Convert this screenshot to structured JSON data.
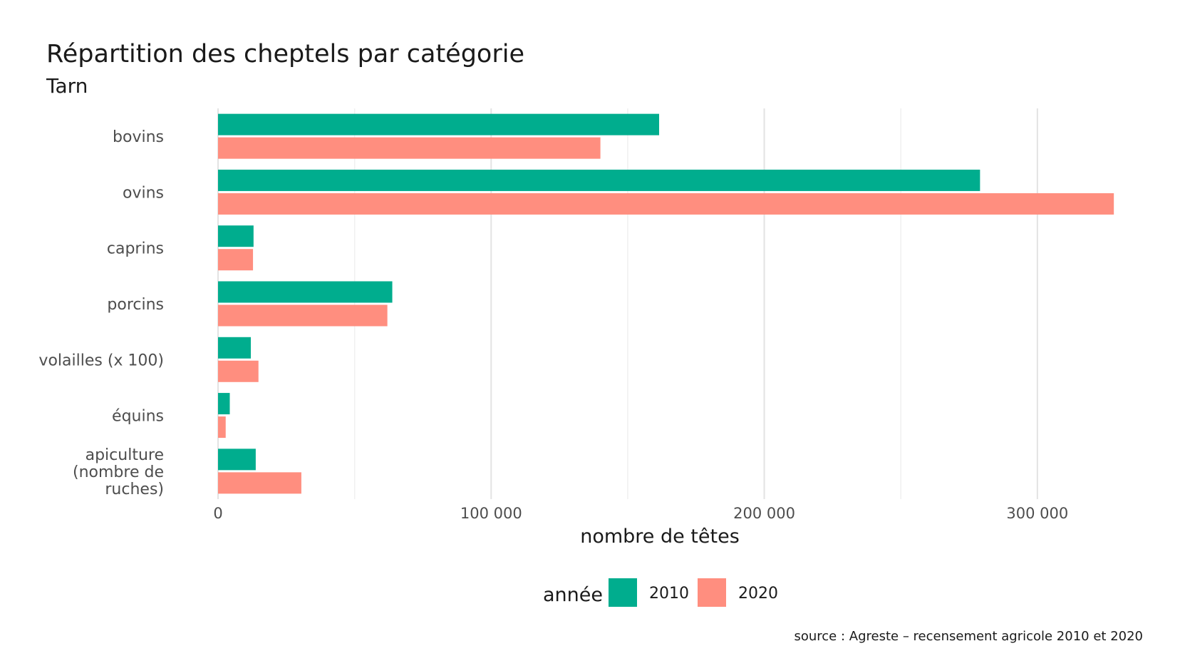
{
  "chart_data": {
    "type": "bar",
    "orientation": "horizontal",
    "title": "Répartition des cheptels par catégorie",
    "subtitle": "Tarn",
    "xlabel": "nombre de têtes",
    "ylabel": "",
    "xlim": [
      0,
      335000
    ],
    "x_ticks": [
      0,
      100000,
      200000,
      300000
    ],
    "x_tick_labels": [
      "0",
      "100 000",
      "200 000",
      "300 000"
    ],
    "grid": true,
    "categories": [
      [
        "bovins"
      ],
      [
        "ovins"
      ],
      [
        "caprins"
      ],
      [
        "porcins"
      ],
      [
        "volailles (x 100)"
      ],
      [
        "équins"
      ],
      [
        "apiculture",
        "(nombre de",
        "ruches)"
      ]
    ],
    "series": [
      {
        "name": "2010",
        "color": "#00ad8e",
        "values": [
          161500,
          279000,
          13000,
          63800,
          12000,
          4300,
          13800
        ]
      },
      {
        "name": "2020",
        "color": "#ff8e7f",
        "values": [
          140000,
          328000,
          12800,
          62000,
          14800,
          2800,
          30500
        ]
      }
    ],
    "legend": {
      "title": "année",
      "position": "bottom"
    },
    "caption": "source : Agreste – recensement agricole 2010 et 2020"
  }
}
